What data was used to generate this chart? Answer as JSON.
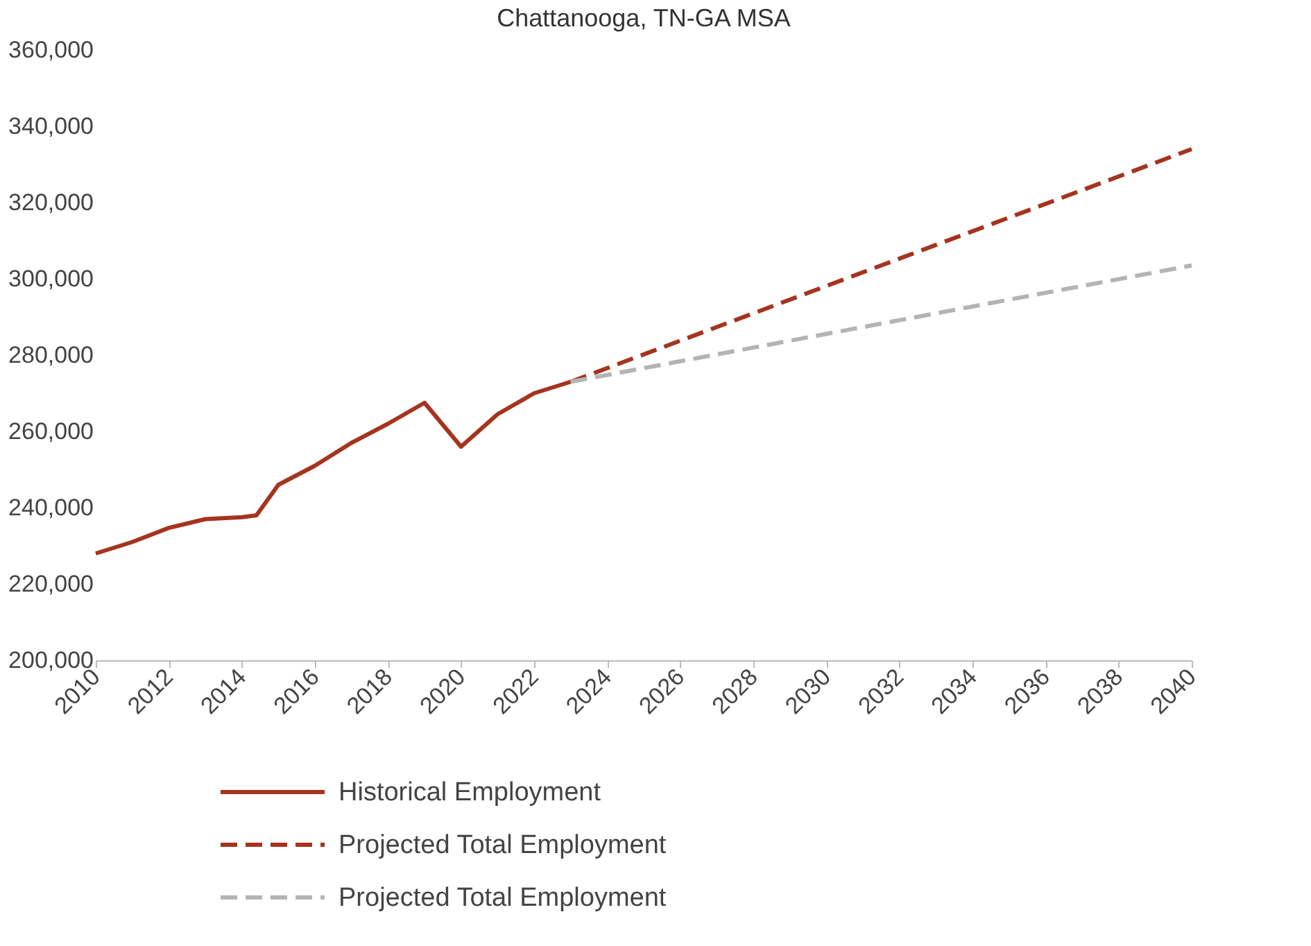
{
  "chart_data": {
    "type": "line",
    "title": "Chattanooga, TN-GA MSA",
    "series": [
      {
        "name": "Historical Employment",
        "color": "#a5341f",
        "line_style": "solid",
        "x": [
          2010,
          2011,
          2012,
          2013,
          2014,
          2014.4,
          2015,
          2016,
          2017,
          2018,
          2019,
          2020,
          2021,
          2022,
          2023
        ],
        "values": [
          228000,
          231000,
          234700,
          237000,
          237500,
          238000,
          246000,
          251000,
          257000,
          262000,
          267500,
          256000,
          264500,
          270000,
          273000
        ]
      },
      {
        "name": "Projected Total Employment",
        "color": "#a5341f",
        "line_style": "dashed",
        "x": [
          2023,
          2040
        ],
        "values": [
          273000,
          334000
        ]
      },
      {
        "name": "Projected Total Employment",
        "color": "#b4b4b4",
        "line_style": "dashed",
        "x": [
          2023,
          2040
        ],
        "values": [
          273000,
          303500
        ]
      }
    ],
    "xlim": [
      2010,
      2040
    ],
    "xticks": [
      2010,
      2012,
      2014,
      2016,
      2018,
      2020,
      2022,
      2024,
      2026,
      2028,
      2030,
      2032,
      2034,
      2036,
      2038,
      2040
    ],
    "ylim": [
      200000,
      360000
    ],
    "yticks": [
      {
        "value": 200000,
        "label": "200,000"
      },
      {
        "value": 220000,
        "label": "220,000"
      },
      {
        "value": 240000,
        "label": "240,000"
      },
      {
        "value": 260000,
        "label": "260,000"
      },
      {
        "value": 280000,
        "label": "280,000"
      },
      {
        "value": 300000,
        "label": "300,000"
      },
      {
        "value": 320000,
        "label": "320,000"
      },
      {
        "value": 340000,
        "label": "340,000"
      },
      {
        "value": 360000,
        "label": "360,000"
      }
    ],
    "grid": false,
    "legend": "bottom",
    "marker": "none"
  }
}
